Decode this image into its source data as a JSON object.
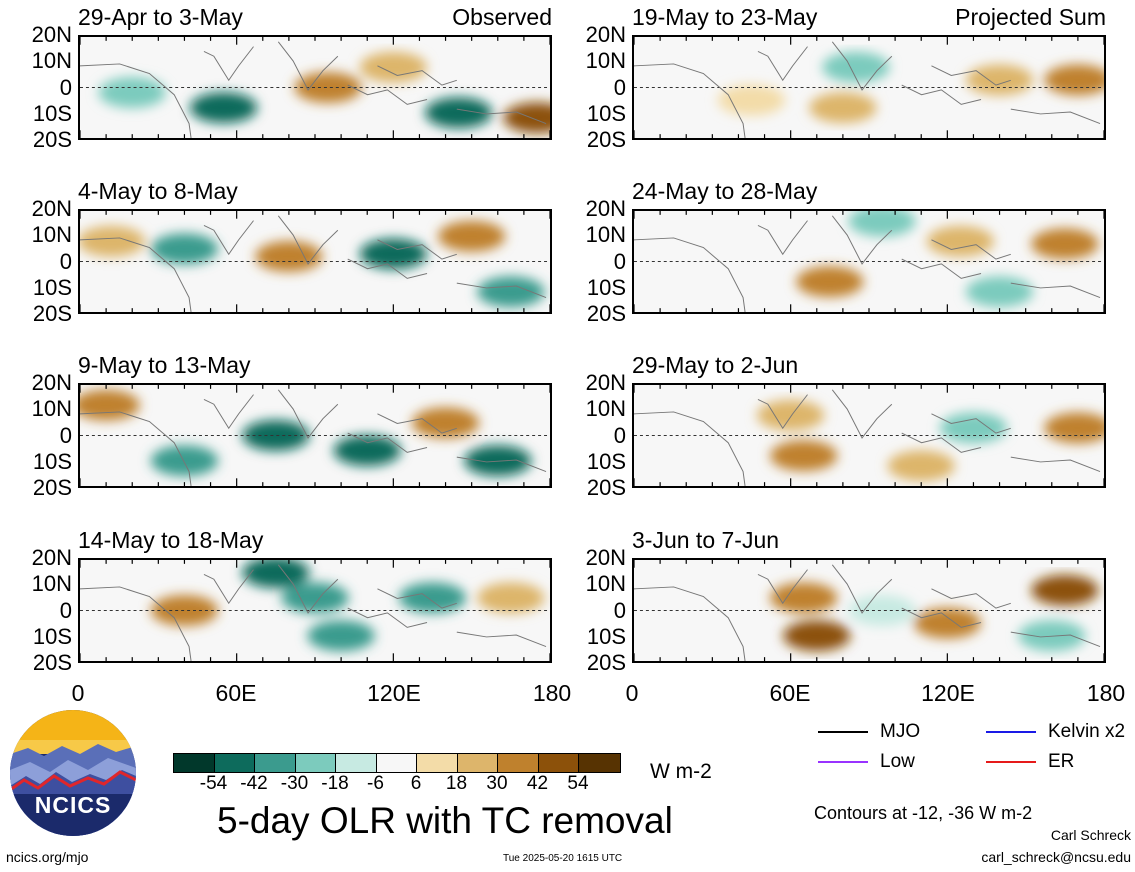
{
  "panels": [
    {
      "title": "29-Apr to 3-May",
      "label": "Observed"
    },
    {
      "title": "4-May to 8-May",
      "label": ""
    },
    {
      "title": "9-May to 13-May",
      "label": ""
    },
    {
      "title": "14-May to 18-May",
      "label": ""
    },
    {
      "title": "19-May to 23-May",
      "label": "Projected Sum"
    },
    {
      "title": "24-May to 28-May",
      "label": ""
    },
    {
      "title": "29-May to 2-Jun",
      "label": ""
    },
    {
      "title": "3-Jun to 7-Jun",
      "label": ""
    }
  ],
  "axes": {
    "y_ticks": [
      "20N",
      "10N",
      "0",
      "10S",
      "20S"
    ],
    "x_ticks": [
      "0",
      "60E",
      "120E",
      "180"
    ]
  },
  "colorbar": {
    "tick_labels": [
      "-54",
      "-42",
      "-30",
      "-18",
      "-6",
      "6",
      "18",
      "30",
      "42",
      "54"
    ],
    "colors": [
      "#01382b",
      "#0d6b5c",
      "#3b9b8e",
      "#7ccbbd",
      "#c7eae2",
      "#f7f7f7",
      "#f3dca8",
      "#ddb56b",
      "#bf812d",
      "#8c510a",
      "#573302"
    ],
    "unit": "W m-2"
  },
  "legend": {
    "mjo": {
      "label": "MJO",
      "color": "#000000"
    },
    "kelvin": {
      "label": "Kelvin x2",
      "color": "#1a1ae6"
    },
    "low": {
      "label": "Low",
      "color": "#9933ff"
    },
    "er": {
      "label": "ER",
      "color": "#e61a1a"
    }
  },
  "contour_note": "Contours at -12, -36 W m-2",
  "main_title": "5-day OLR with TC removal",
  "logo_text": "NCICS",
  "footer": {
    "url": "ncics.org/mjo",
    "timestamp": "Tue 2025-05-20 1615 UTC",
    "author": "Carl Schreck",
    "email": "carl_schreck@ncsu.edu"
  },
  "chart_data": {
    "type": "heatmap",
    "variable": "OLR anomaly",
    "unit": "W m-2",
    "title": "5-day OLR with TC removal",
    "x_range": [
      0,
      180
    ],
    "y_range": [
      -20,
      20
    ],
    "x_ticks": [
      "0",
      "60E",
      "120E",
      "180"
    ],
    "y_ticks": [
      "20N",
      "10N",
      "0",
      "10S",
      "20S"
    ],
    "color_levels": [
      -54,
      -42,
      -30,
      -18,
      -6,
      6,
      18,
      30,
      42,
      54
    ],
    "contour_levels": [
      -12,
      -36
    ],
    "contour_series": [
      "MJO",
      "Kelvin x2",
      "Low",
      "ER"
    ],
    "periods": [
      {
        "period": "29-Apr to 3-May",
        "kind": "Observed",
        "features": [
          {
            "lon": 95,
            "lat": 0,
            "value": 40
          },
          {
            "lon": 55,
            "lat": -8,
            "value": -45
          },
          {
            "lon": 20,
            "lat": -2,
            "value": -30
          },
          {
            "lon": 145,
            "lat": -10,
            "value": -45
          },
          {
            "lon": 175,
            "lat": -12,
            "value": 45
          },
          {
            "lon": 120,
            "lat": 8,
            "value": 20
          }
        ]
      },
      {
        "period": "4-May to 8-May",
        "kind": "Observed",
        "features": [
          {
            "lon": 40,
            "lat": 5,
            "value": -40
          },
          {
            "lon": 80,
            "lat": 2,
            "value": 30
          },
          {
            "lon": 120,
            "lat": 3,
            "value": -45
          },
          {
            "lon": 150,
            "lat": 10,
            "value": 40
          },
          {
            "lon": 165,
            "lat": -12,
            "value": -40
          },
          {
            "lon": 12,
            "lat": 8,
            "value": 25
          }
        ]
      },
      {
        "period": "9-May to 13-May",
        "kind": "Observed",
        "features": [
          {
            "lon": 10,
            "lat": 12,
            "value": 40
          },
          {
            "lon": 75,
            "lat": 0,
            "value": -50
          },
          {
            "lon": 110,
            "lat": -6,
            "value": -45
          },
          {
            "lon": 160,
            "lat": -10,
            "value": -45
          },
          {
            "lon": 140,
            "lat": 5,
            "value": 30
          },
          {
            "lon": 40,
            "lat": -10,
            "value": -35
          }
        ]
      },
      {
        "period": "14-May to 18-May",
        "kind": "Observed",
        "features": [
          {
            "lon": 75,
            "lat": 15,
            "value": -50
          },
          {
            "lon": 90,
            "lat": 5,
            "value": -40
          },
          {
            "lon": 135,
            "lat": 5,
            "value": -40
          },
          {
            "lon": 40,
            "lat": 0,
            "value": 30
          },
          {
            "lon": 165,
            "lat": 5,
            "value": 25
          },
          {
            "lon": 100,
            "lat": -10,
            "value": -35
          }
        ]
      },
      {
        "period": "19-May to 23-May",
        "kind": "Projected Sum",
        "features": [
          {
            "lon": 170,
            "lat": 3,
            "value": 40
          },
          {
            "lon": 140,
            "lat": 3,
            "value": 25
          },
          {
            "lon": 85,
            "lat": 8,
            "value": -20
          },
          {
            "lon": 45,
            "lat": -5,
            "value": 15
          },
          {
            "lon": 80,
            "lat": -8,
            "value": 20
          }
        ]
      },
      {
        "period": "24-May to 28-May",
        "kind": "Projected Sum",
        "features": [
          {
            "lon": 165,
            "lat": 7,
            "value": 35
          },
          {
            "lon": 75,
            "lat": -8,
            "value": 30
          },
          {
            "lon": 95,
            "lat": 16,
            "value": -30
          },
          {
            "lon": 140,
            "lat": -12,
            "value": -25
          },
          {
            "lon": 125,
            "lat": 8,
            "value": 20
          }
        ]
      },
      {
        "period": "29-May to 2-Jun",
        "kind": "Projected Sum",
        "features": [
          {
            "lon": 65,
            "lat": -8,
            "value": 35
          },
          {
            "lon": 110,
            "lat": -12,
            "value": 25
          },
          {
            "lon": 170,
            "lat": 3,
            "value": 30
          },
          {
            "lon": 130,
            "lat": 3,
            "value": -20
          },
          {
            "lon": 60,
            "lat": 8,
            "value": 20
          }
        ]
      },
      {
        "period": "3-Jun to 7-Jun",
        "kind": "Projected Sum",
        "features": [
          {
            "lon": 165,
            "lat": 8,
            "value": 45
          },
          {
            "lon": 70,
            "lat": -10,
            "value": 45
          },
          {
            "lon": 65,
            "lat": 5,
            "value": 30
          },
          {
            "lon": 120,
            "lat": -5,
            "value": 30
          },
          {
            "lon": 160,
            "lat": -10,
            "value": -25
          },
          {
            "lon": 95,
            "lat": 0,
            "value": -15
          }
        ]
      }
    ]
  }
}
